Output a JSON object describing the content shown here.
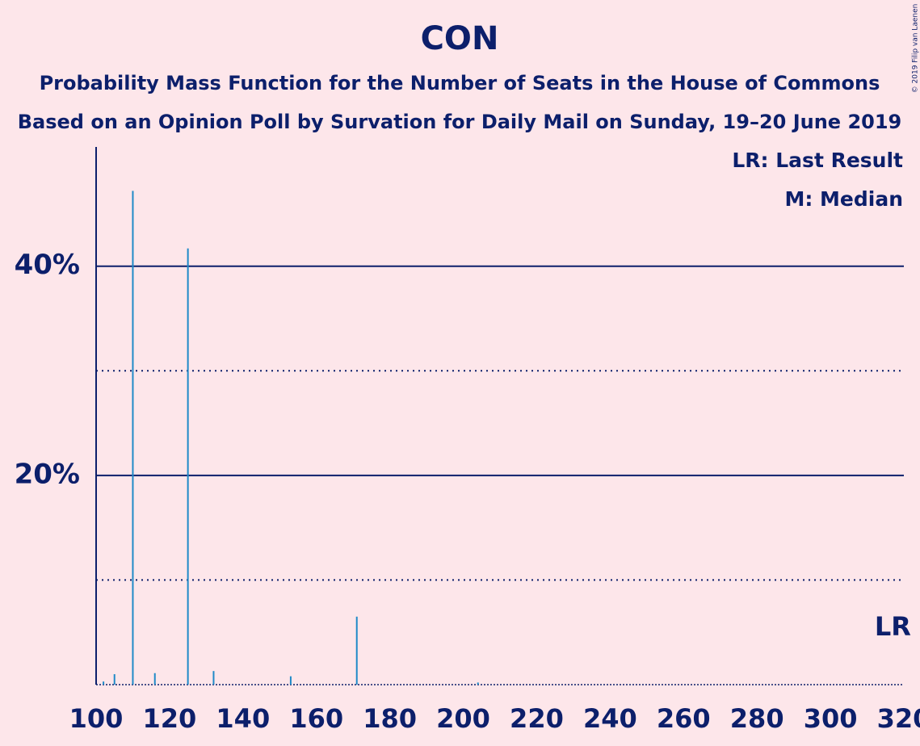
{
  "chart_data": {
    "type": "bar",
    "title": "CON",
    "subtitle": "Probability Mass Function for the Number of Seats in the House of Commons",
    "subtitle2": "Based on an Opinion Poll by Survation for Daily Mail on Sunday, 19–20 June 2019",
    "legend_lr": "LR: Last Result",
    "legend_m": "M: Median",
    "copyright": "© 2019 Filip van Laenen",
    "x": [
      102,
      105,
      110,
      116,
      125,
      132,
      153,
      171,
      204
    ],
    "values": [
      0.3,
      1.0,
      47.2,
      1.1,
      41.7,
      1.3,
      0.8,
      6.5,
      0.2
    ],
    "color": "#1f8ac8",
    "xlim": [
      100,
      320
    ],
    "xticks": [
      100,
      120,
      140,
      160,
      180,
      200,
      220,
      240,
      260,
      280,
      300,
      320
    ],
    "ylim": [
      0,
      51.4
    ],
    "yticks": [
      {
        "value": 20,
        "label": "20%"
      },
      {
        "value": 40,
        "label": "40%"
      }
    ],
    "minor_yticks": [
      10,
      30
    ],
    "last_result": 317,
    "last_result_label": "LR",
    "grid": true
  }
}
